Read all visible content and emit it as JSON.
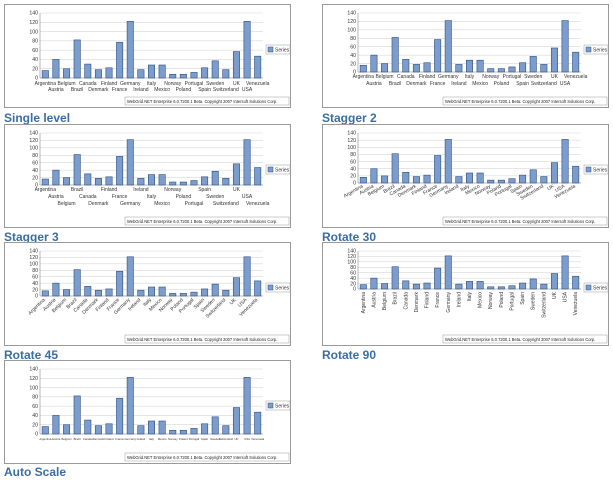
{
  "colors": {
    "bar_fill": "#7b9ccc",
    "bar_stroke": "#2f4f7f",
    "caption": "#3a6ea5",
    "grid": "#d8d8d8"
  },
  "footer_text": "WebGrid.NET Enterprise 6.0.7200.1 Beta. Copyright 2007 Intersoft Solutions Corp.",
  "legend_label": "Series",
  "captions": [
    "Single level",
    "Stagger 2",
    "Stagger 3",
    "Rotate 30",
    "Rotate 45",
    "Rotate 90",
    "Auto Scale"
  ],
  "chart_data": [
    {
      "type": "bar",
      "label_mode": "Single level",
      "categories": [
        "Argentina",
        "Austria",
        "Belgium",
        "Brazil",
        "Canada",
        "Denmark",
        "Finland",
        "France",
        "Germany",
        "Ireland",
        "Italy",
        "Mexico",
        "Norway",
        "Poland",
        "Portugal",
        "Spain",
        "Sweden",
        "Switzerland",
        "UK",
        "USA",
        "Venezuela"
      ],
      "series": [
        {
          "name": "Series",
          "values": [
            16,
            40,
            20,
            82,
            30,
            18,
            22,
            77,
            122,
            18,
            28,
            28,
            8,
            8,
            12,
            22,
            37,
            18,
            57,
            122,
            47
          ]
        }
      ],
      "ylim": [
        0,
        140
      ],
      "yticks": [
        0,
        20,
        40,
        60,
        80,
        100,
        120,
        140
      ],
      "grid": true,
      "legend_position": "right"
    },
    {
      "type": "bar",
      "label_mode": "Stagger 2",
      "categories": [
        "Argentina",
        "Austria",
        "Belgium",
        "Brazil",
        "Canada",
        "Denmark",
        "Finland",
        "France",
        "Germany",
        "Ireland",
        "Italy",
        "Mexico",
        "Norway",
        "Poland",
        "Portugal",
        "Spain",
        "Sweden",
        "Switzerland",
        "UK",
        "USA",
        "Venezuela"
      ],
      "series": [
        {
          "name": "Series",
          "values": [
            16,
            40,
            20,
            82,
            30,
            18,
            22,
            77,
            122,
            18,
            28,
            28,
            8,
            8,
            12,
            22,
            37,
            18,
            57,
            122,
            47
          ]
        }
      ],
      "ylim": [
        0,
        140
      ],
      "yticks": [
        0,
        20,
        40,
        60,
        80,
        100,
        120,
        140
      ],
      "grid": true,
      "legend_position": "right"
    },
    {
      "type": "bar",
      "label_mode": "Stagger 3",
      "categories": [
        "Argentina",
        "Austria",
        "Belgium",
        "Brazil",
        "Canada",
        "Denmark",
        "Finland",
        "France",
        "Germany",
        "Ireland",
        "Italy",
        "Mexico",
        "Norway",
        "Poland",
        "Portugal",
        "Spain",
        "Sweden",
        "Switzerland",
        "UK",
        "USA",
        "Venezuela"
      ],
      "series": [
        {
          "name": "Series",
          "values": [
            16,
            40,
            20,
            82,
            30,
            18,
            22,
            77,
            122,
            18,
            28,
            28,
            8,
            8,
            12,
            22,
            37,
            18,
            57,
            122,
            47
          ]
        }
      ],
      "ylim": [
        0,
        140
      ],
      "yticks": [
        0,
        20,
        40,
        60,
        80,
        100,
        120,
        140
      ],
      "grid": true,
      "legend_position": "right"
    },
    {
      "type": "bar",
      "label_mode": "Rotate 30",
      "categories": [
        "Argentina",
        "Austria",
        "Belgium",
        "Brazil",
        "Canada",
        "Denmark",
        "Finland",
        "France",
        "Germany",
        "Ireland",
        "Italy",
        "Mexico",
        "Norway",
        "Poland",
        "Portugal",
        "Spain",
        "Sweden",
        "Switzerland",
        "UK",
        "USA",
        "Venezuela"
      ],
      "series": [
        {
          "name": "Series",
          "values": [
            16,
            40,
            20,
            82,
            30,
            18,
            22,
            77,
            122,
            18,
            28,
            28,
            8,
            8,
            12,
            22,
            37,
            18,
            57,
            122,
            47
          ]
        }
      ],
      "ylim": [
        0,
        140
      ],
      "yticks": [
        0,
        20,
        40,
        60,
        80,
        100,
        120,
        140
      ],
      "grid": true,
      "legend_position": "right"
    },
    {
      "type": "bar",
      "label_mode": "Rotate 45",
      "categories": [
        "Argentina",
        "Austria",
        "Belgium",
        "Brazil",
        "Canada",
        "Denmark",
        "Finland",
        "France",
        "Germany",
        "Ireland",
        "Italy",
        "Mexico",
        "Norway",
        "Poland",
        "Portugal",
        "Spain",
        "Sweden",
        "Switzerland",
        "UK",
        "USA",
        "Venezuela"
      ],
      "series": [
        {
          "name": "Series",
          "values": [
            16,
            40,
            20,
            82,
            30,
            18,
            22,
            77,
            122,
            18,
            28,
            28,
            8,
            8,
            12,
            22,
            37,
            18,
            57,
            122,
            47
          ]
        }
      ],
      "ylim": [
        0,
        140
      ],
      "yticks": [
        0,
        20,
        40,
        60,
        80,
        100,
        120,
        140
      ],
      "grid": true,
      "legend_position": "right"
    },
    {
      "type": "bar",
      "label_mode": "Rotate 90",
      "categories": [
        "Argentina",
        "Austria",
        "Belgium",
        "Brazil",
        "Canada",
        "Denmark",
        "Finland",
        "France",
        "Germany",
        "Ireland",
        "Italy",
        "Mexico",
        "Norway",
        "Poland",
        "Portugal",
        "Spain",
        "Sweden",
        "Switzerland",
        "UK",
        "USA",
        "Venezuela"
      ],
      "series": [
        {
          "name": "Series",
          "values": [
            16,
            40,
            20,
            82,
            30,
            18,
            22,
            77,
            122,
            18,
            28,
            28,
            8,
            8,
            12,
            22,
            37,
            18,
            57,
            122,
            47
          ]
        }
      ],
      "ylim": [
        0,
        140
      ],
      "yticks": [
        0,
        20,
        40,
        60,
        80,
        100,
        120,
        140
      ],
      "grid": true,
      "legend_position": "right"
    },
    {
      "type": "bar",
      "label_mode": "Auto Scale",
      "categories": [
        "Argentina",
        "Austria",
        "Belgium",
        "Brazil",
        "Canada",
        "Denmark",
        "Finland",
        "France",
        "Germany",
        "Ireland",
        "Italy",
        "Mexico",
        "Norway",
        "Poland",
        "Portugal",
        "Spain",
        "Sweden",
        "Switzerland",
        "UK",
        "USA",
        "Venezuela"
      ],
      "series": [
        {
          "name": "Series",
          "values": [
            16,
            40,
            20,
            82,
            30,
            18,
            22,
            77,
            122,
            18,
            28,
            28,
            8,
            8,
            12,
            22,
            37,
            18,
            57,
            122,
            47
          ]
        }
      ],
      "ylim": [
        0,
        140
      ],
      "yticks": [
        0,
        20,
        40,
        60,
        80,
        100,
        120,
        140
      ],
      "grid": true,
      "legend_position": "right"
    }
  ]
}
